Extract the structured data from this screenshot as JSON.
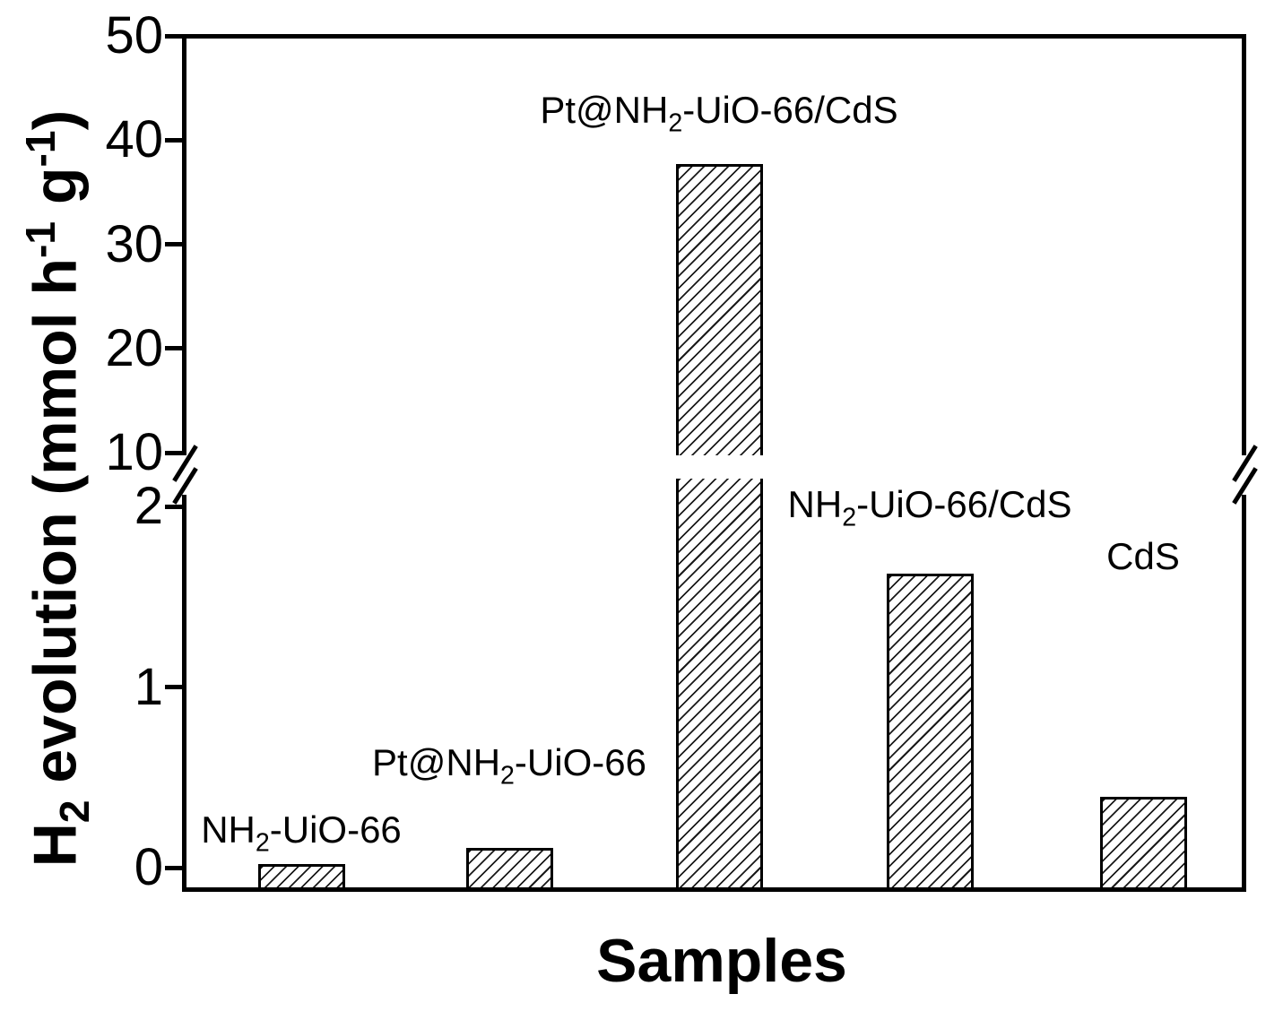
{
  "chart_data": {
    "type": "bar",
    "title": "",
    "xlabel": "Samples",
    "ylabel": "H_2_ evolution (mmol h^-1^ g^-1^)",
    "categories": [
      "NH_2_-UiO-66",
      "Pt@NH_2_-UiO-66",
      "Pt@NH_2_-UiO-66/CdS",
      "NH_2_-UiO-66/CdS",
      "CdS"
    ],
    "values": [
      0.02,
      0.11,
      37.7,
      1.63,
      0.39
    ],
    "unit": "mmol h^-1^ g^-1^",
    "y_axis": {
      "broken": true,
      "break_high": 10,
      "segments": [
        {
          "range": [
            -0.13,
            2.3
          ],
          "ticks": [
            0,
            1,
            2
          ]
        },
        {
          "range": [
            10,
            50
          ],
          "ticks": [
            10,
            20,
            30,
            40,
            50
          ]
        }
      ]
    },
    "x_axis": {
      "ticks": []
    },
    "annotations": [
      {
        "text": "NH_2_-UiO-66",
        "bar": 0,
        "y": 0.19
      },
      {
        "text": "Pt@NH_2_-UiO-66",
        "bar": 1,
        "y": 0.56
      },
      {
        "text": "Pt@NH_2_-UiO-66/CdS",
        "bar": 2,
        "y": 42.5
      },
      {
        "text": "NH_2_-UiO-66/CdS",
        "bar": 3,
        "y": 1.99
      },
      {
        "text": "CdS",
        "bar": 4,
        "y": 1.72
      }
    ],
    "style": {
      "bar_fill": "white-with-diagonal-hatch",
      "hatch_direction": "forward-slash",
      "line_color": "#000000",
      "background": "#ffffff",
      "legend": "none",
      "grid": false,
      "frame": true
    }
  }
}
